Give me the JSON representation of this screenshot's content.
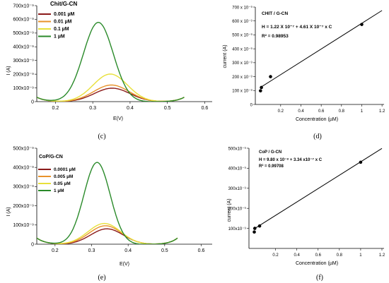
{
  "chart_data": [
    {
      "panel": "c",
      "type": "line",
      "title": "Chit/G-CN",
      "xlabel": "E(V)",
      "ylabel": "I (A)",
      "xlim": [
        0.15,
        0.62
      ],
      "ylim": [
        0,
        700
      ],
      "x_ticks": [
        "0.2",
        "0.3",
        "0.4",
        "0.5",
        "0.6"
      ],
      "y_ticks": [
        "0",
        "100x10⁻⁹",
        "200x10⁻⁹",
        "300x10⁻⁹",
        "400x10⁻⁹",
        "500x10⁻⁹",
        "600x10⁻⁹",
        "700x10⁻⁹"
      ],
      "grid": false,
      "legend": "top-left",
      "series": [
        {
          "name": "0.001 µM",
          "color": "#8b1a1a",
          "peak_x": 0.352,
          "peak_y": 100,
          "width": 0.048
        },
        {
          "name": "0.01 µM",
          "color": "#e8922a",
          "peak_x": 0.35,
          "peak_y": 123,
          "width": 0.048
        },
        {
          "name": "0.1 µM",
          "color": "#e8e03a",
          "peak_x": 0.347,
          "peak_y": 203,
          "width": 0.046
        },
        {
          "name": "1 µM",
          "color": "#2a8a2a",
          "peak_x": 0.315,
          "peak_y": 580,
          "width": 0.04
        }
      ],
      "caption": "(c)"
    },
    {
      "panel": "d",
      "type": "scatter",
      "annotation_title": "CHIT / G-CN",
      "equation": "H = 1.22 X 10⁻⁷ + 4.61 X 10⁻⁷ x C",
      "r2": "R² = 0.98953",
      "xlabel": "Concentration (µM)",
      "ylabel": "current (A)",
      "xlim": [
        -0.05,
        1.22
      ],
      "ylim": [
        0,
        700
      ],
      "x_ticks": [
        "0.2",
        "0.4",
        "0.6",
        "0.8",
        "1",
        "1.2"
      ],
      "y_ticks": [
        "0",
        "100 x 10⁻⁹",
        "200 x 10⁻⁹",
        "300 x 10⁻⁹",
        "400 x 10⁻⁹",
        "500 x 10⁻⁹",
        "600 x 10⁻⁹",
        "700 x 10⁻⁹"
      ],
      "points": [
        [
          0.001,
          98
        ],
        [
          0.01,
          122
        ],
        [
          0.1,
          200
        ],
        [
          1.0,
          575
        ]
      ],
      "fit": {
        "intercept": 122,
        "slope": 461
      },
      "caption": "(d)"
    },
    {
      "panel": "e",
      "type": "line",
      "title": "CoP/G-CN",
      "xlabel": "E(V)",
      "ylabel": "I (A)",
      "xlim": [
        0.15,
        0.63
      ],
      "ylim": [
        0,
        500
      ],
      "x_ticks": [
        "0.2",
        "0.3",
        "0.4",
        "0.5",
        "0.6"
      ],
      "y_ticks": [
        "0",
        "100x10⁻⁹",
        "200x10⁻⁹",
        "300x10⁻⁹",
        "400x10⁻⁹",
        "500x10⁻⁹"
      ],
      "grid": false,
      "legend": "top-left",
      "series": [
        {
          "name": "0.0001 µM",
          "color": "#8b1a1a",
          "peak_x": 0.342,
          "peak_y": 82,
          "width": 0.045
        },
        {
          "name": "0.005 µM",
          "color": "#e8922a",
          "peak_x": 0.338,
          "peak_y": 98,
          "width": 0.045
        },
        {
          "name": "0.05 µM",
          "color": "#e8e03a",
          "peak_x": 0.335,
          "peak_y": 110,
          "width": 0.045
        },
        {
          "name": "1 µM",
          "color": "#2a8a2a",
          "peak_x": 0.315,
          "peak_y": 428,
          "width": 0.036
        }
      ],
      "caption": "(e)"
    },
    {
      "panel": "f",
      "type": "scatter",
      "annotation_title": "CoP / G-CN",
      "equation": "H = 9.80 x 10⁻⁸ + 3.34 x10⁻⁷ x C",
      "r2": "R² = 0.99708",
      "xlabel": "Concentration (µM)",
      "ylabel": "current (A)",
      "xlim": [
        -0.05,
        1.22
      ],
      "ylim": [
        0,
        500
      ],
      "x_ticks": [
        "0.2",
        "0.4",
        "0.6",
        "0.8",
        "1",
        "1.2"
      ],
      "y_ticks": [
        "100x10⁻⁹",
        "200x10⁻⁹",
        "300x10⁻⁹",
        "400x10⁻⁹",
        "500x10⁻⁹"
      ],
      "points": [
        [
          0.0001,
          82
        ],
        [
          0.005,
          100
        ],
        [
          0.05,
          112
        ],
        [
          1.0,
          430
        ]
      ],
      "fit": {
        "intercept": 98,
        "slope": 334
      },
      "caption": "(f)"
    }
  ]
}
